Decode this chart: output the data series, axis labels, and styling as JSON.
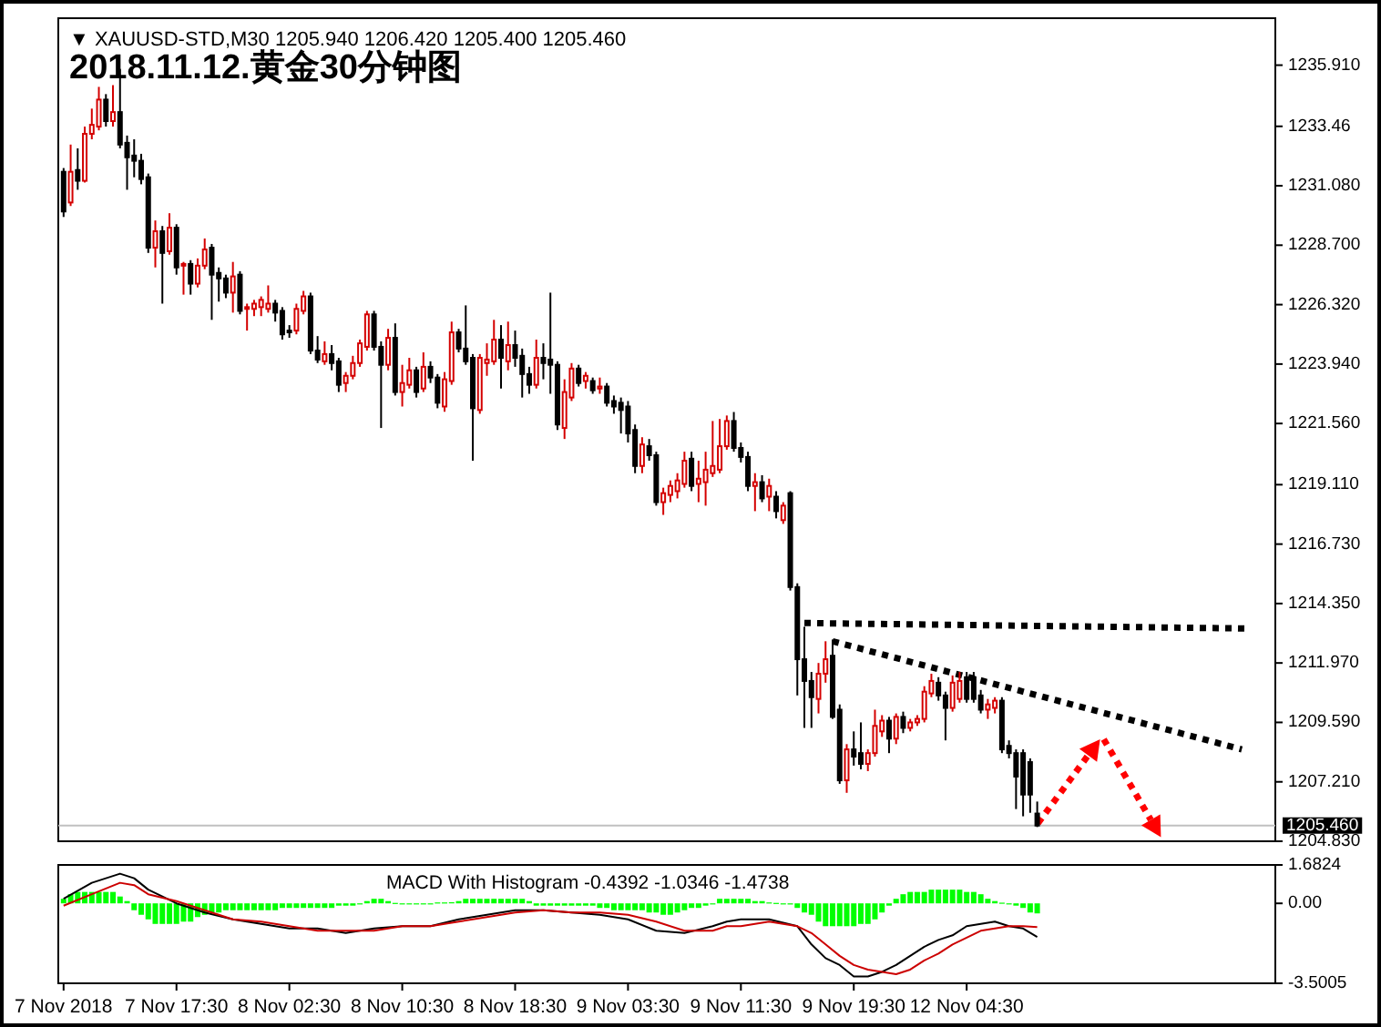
{
  "chart_data": [
    {
      "type": "candlestick",
      "title": "2018.11.12.黄金30分钟图",
      "subtitle": "▼ XAUUSD-STD,M30  1205.940 1206.420 1205.400 1205.460",
      "categories": [
        null,
        null,
        null,
        null,
        null,
        null,
        null,
        null,
        null,
        null,
        null,
        null,
        null,
        null,
        null,
        null,
        null,
        null,
        null,
        null,
        null,
        null,
        null,
        null,
        null,
        null,
        null,
        null,
        null,
        null,
        null,
        null,
        null,
        null,
        null,
        null,
        null,
        null,
        null,
        null,
        null,
        null,
        null,
        null,
        null,
        null,
        null,
        null,
        null,
        null,
        null,
        null,
        null,
        null,
        null,
        null,
        null,
        null,
        null,
        null,
        null,
        null,
        null,
        null,
        null,
        null,
        null,
        null,
        null,
        null,
        null,
        null,
        null,
        null,
        null,
        null,
        null,
        null,
        null,
        null,
        null,
        null,
        null,
        null,
        null,
        null,
        null,
        null,
        null,
        null,
        null,
        null,
        null,
        null,
        null,
        null,
        null,
        null,
        null,
        null,
        null,
        null,
        null,
        null,
        null,
        null,
        null,
        null,
        null,
        null,
        null,
        null,
        null,
        null,
        null,
        null,
        null,
        null,
        null,
        null,
        null,
        null,
        null,
        null,
        null,
        null,
        null,
        null,
        null,
        null,
        null,
        null,
        null,
        null,
        null,
        null,
        null,
        null,
        null,
        null,
        null,
        null,
        null,
        null,
        null,
        null,
        null,
        null,
        null,
        null,
        null,
        null,
        null,
        null,
        null,
        null,
        null,
        null,
        null,
        null,
        null,
        null,
        null,
        null,
        null,
        null,
        null,
        null,
        null,
        null,
        null,
        null
      ],
      "colors": [
        "#000000",
        "#d40000",
        "#000000",
        "#d40000",
        "#d40000",
        "#d40000",
        "#000000",
        "#d40000",
        "#000000",
        "#000000",
        "#000000",
        "#000000",
        "#000000",
        "#d40000",
        "#000000",
        "#d40000",
        "#000000",
        "#d40000",
        "#000000",
        "#d40000",
        "#d40000",
        "#000000",
        "#000000",
        "#000000",
        "#d40000",
        "#000000",
        "#d40000",
        "#d40000",
        "#d40000",
        "#d40000",
        "#000000",
        "#000000",
        "#000000",
        "#d40000",
        "#d40000",
        "#000000",
        "#000000",
        "#d40000",
        "#000000",
        "#000000",
        "#d40000",
        "#d40000",
        "#d40000",
        "#d40000",
        "#000000",
        "#000000",
        "#d40000",
        "#000000",
        "#d40000",
        "#d40000",
        "#000000",
        "#d40000",
        "#000000",
        "#000000",
        "#d40000",
        "#d40000",
        "#000000",
        "#000000",
        "#000000",
        "#d40000",
        "#d40000",
        "#d40000",
        "#000000",
        "#d40000",
        "#000000",
        "#000000",
        "#000000",
        "#d40000",
        "#000000",
        "#000000",
        "#000000",
        "#d40000",
        "#d40000",
        "#000000",
        "#d40000",
        "#000000",
        "#d40000",
        "#000000",
        "#000000",
        "#000000",
        "#000000",
        "#000000",
        "#d40000",
        "#000000",
        "#000000",
        "#d40000",
        "#d40000",
        "#d40000",
        "#d40000",
        "#000000",
        "#d40000",
        "#d40000",
        "#d40000",
        "#d40000",
        "#d40000",
        "#000000",
        "#000000",
        "#000000",
        "#d40000",
        "#000000",
        "#d40000",
        "#000000",
        "#d40000",
        "#000000",
        "#000000",
        "#000000",
        "#000000",
        "#d40000",
        "#d40000",
        "#000000",
        "#000000",
        "#d40000",
        "#000000",
        "#000000",
        "#d40000",
        "#d40000",
        "#d40000",
        "#000000",
        "#d40000",
        "#000000",
        "#d40000",
        "#d40000",
        "#d40000",
        "#d40000",
        "#000000",
        "#000000",
        "#d40000",
        "#d40000",
        "#000000",
        "#000000",
        "#000000",
        "#d40000",
        "#d40000",
        "#000000",
        "#000000",
        "#000000",
        "#000000",
        "#000000",
        "#000000",
        null,
        null,
        null,
        null,
        null,
        null,
        null,
        null,
        null,
        null,
        null,
        null,
        null,
        null,
        null,
        null,
        null,
        null,
        null,
        null,
        null,
        null,
        null,
        null,
        null,
        null,
        null,
        null,
        null,
        null,
        null,
        null,
        null
      ],
      "ohlc": [
        [
          1231.64,
          1231.79,
          1229.83,
          1230.05
        ],
        [
          1230.41,
          1232.73,
          1230.27,
          1231.64
        ],
        [
          1231.71,
          1232.58,
          1230.92,
          1231.28
        ],
        [
          1231.28,
          1233.45,
          1231.21,
          1233.16
        ],
        [
          1233.16,
          1234.17,
          1232.94,
          1233.52
        ],
        [
          1233.45,
          1235.04,
          1233.3,
          1234.53
        ],
        [
          1234.53,
          1234.75,
          1233.45,
          1233.67
        ],
        [
          1233.67,
          1235.11,
          1233.45,
          1234.03
        ],
        [
          1234.03,
          1235.76,
          1232.58,
          1232.73
        ],
        [
          1232.8,
          1233.09,
          1230.92,
          1232.22
        ],
        [
          1232.29,
          1232.94,
          1231.42,
          1232.08
        ],
        [
          1232.08,
          1232.36,
          1231.14,
          1231.35
        ],
        [
          1231.42,
          1231.57,
          1228.39,
          1228.6
        ],
        [
          1228.6,
          1229.69,
          1227.81,
          1229.26
        ],
        [
          1229.26,
          1229.47,
          1226.36,
          1228.39
        ],
        [
          1228.46,
          1229.98,
          1228.32,
          1229.4
        ],
        [
          1229.4,
          1229.54,
          1227.52,
          1227.81
        ],
        [
          1227.88,
          1228.03,
          1226.72,
          1227.95
        ],
        [
          1227.95,
          1228.1,
          1226.72,
          1227.16
        ],
        [
          1227.16,
          1228.17,
          1227.01,
          1227.88
        ],
        [
          1227.88,
          1228.97,
          1227.74,
          1228.53
        ],
        [
          1228.6,
          1228.75,
          1225.71,
          1227.52
        ],
        [
          1227.59,
          1227.81,
          1226.44,
          1227.37
        ],
        [
          1227.37,
          1227.52,
          1226.58,
          1226.8
        ],
        [
          1226.8,
          1228.03,
          1226.0,
          1227.45
        ],
        [
          1227.52,
          1227.66,
          1225.93,
          1226.07
        ],
        [
          1226.15,
          1226.36,
          1225.28,
          1226.22
        ],
        [
          1226.15,
          1226.51,
          1225.86,
          1226.36
        ],
        [
          1226.22,
          1226.65,
          1225.86,
          1226.51
        ],
        [
          1226.15,
          1227.09,
          1226.0,
          1226.36
        ],
        [
          1226.36,
          1226.51,
          1225.64,
          1226.0
        ],
        [
          1226.07,
          1226.22,
          1224.92,
          1225.13
        ],
        [
          1225.28,
          1225.5,
          1224.99,
          1225.21
        ],
        [
          1225.28,
          1226.36,
          1225.13,
          1226.15
        ],
        [
          1226.07,
          1226.87,
          1225.93,
          1226.65
        ],
        [
          1226.65,
          1226.8,
          1224.34,
          1224.48
        ],
        [
          1224.48,
          1225.06,
          1223.98,
          1224.12
        ],
        [
          1224.05,
          1224.85,
          1223.91,
          1224.34
        ],
        [
          1224.34,
          1224.7,
          1223.69,
          1223.98
        ],
        [
          1224.05,
          1224.19,
          1222.82,
          1223.11
        ],
        [
          1223.18,
          1223.62,
          1222.82,
          1223.47
        ],
        [
          1223.47,
          1224.27,
          1223.33,
          1223.98
        ],
        [
          1223.98,
          1224.92,
          1223.83,
          1224.77
        ],
        [
          1224.63,
          1226.07,
          1224.48,
          1225.93
        ],
        [
          1225.93,
          1226.07,
          1224.48,
          1224.63
        ],
        [
          1224.63,
          1224.85,
          1221.38,
          1223.91
        ],
        [
          1223.91,
          1225.35,
          1223.69,
          1224.99
        ],
        [
          1224.99,
          1225.57,
          1222.68,
          1222.82
        ],
        [
          1222.82,
          1223.91,
          1222.24,
          1223.18
        ],
        [
          1223.11,
          1224.19,
          1222.96,
          1223.69
        ],
        [
          1223.69,
          1223.83,
          1222.6,
          1222.82
        ],
        [
          1222.96,
          1224.41,
          1222.82,
          1223.83
        ],
        [
          1223.83,
          1224.05,
          1223.18,
          1223.4
        ],
        [
          1223.4,
          1223.54,
          1222.17,
          1222.39
        ],
        [
          1222.24,
          1223.62,
          1222.03,
          1223.33
        ],
        [
          1223.26,
          1225.64,
          1223.11,
          1225.21
        ],
        [
          1225.21,
          1225.35,
          1224.41,
          1224.56
        ],
        [
          1224.56,
          1226.29,
          1223.91,
          1224.05
        ],
        [
          1224.19,
          1224.34,
          1220.07,
          1222.17
        ],
        [
          1222.1,
          1224.34,
          1221.95,
          1224.19
        ],
        [
          1223.98,
          1224.77,
          1223.47,
          1224.12
        ],
        [
          1224.05,
          1225.71,
          1223.91,
          1224.92
        ],
        [
          1224.92,
          1225.5,
          1222.96,
          1224.19
        ],
        [
          1224.05,
          1225.64,
          1223.69,
          1224.7
        ],
        [
          1224.7,
          1225.28,
          1223.83,
          1224.19
        ],
        [
          1224.27,
          1224.56,
          1222.6,
          1223.54
        ],
        [
          1223.54,
          1223.83,
          1222.75,
          1223.11
        ],
        [
          1223.11,
          1224.92,
          1222.96,
          1224.19
        ],
        [
          1224.19,
          1224.77,
          1223.33,
          1223.98
        ],
        [
          1224.12,
          1226.8,
          1222.75,
          1223.91
        ],
        [
          1223.91,
          1224.05,
          1221.3,
          1221.52
        ],
        [
          1221.38,
          1223.33,
          1220.94,
          1222.82
        ],
        [
          1222.6,
          1223.98,
          1222.46,
          1223.76
        ],
        [
          1223.76,
          1223.91,
          1223.04,
          1223.18
        ],
        [
          1223.26,
          1223.62,
          1222.96,
          1223.47
        ],
        [
          1223.26,
          1223.4,
          1222.75,
          1222.89
        ],
        [
          1222.96,
          1223.4,
          1222.75,
          1223.04
        ],
        [
          1223.04,
          1223.18,
          1222.24,
          1222.39
        ],
        [
          1222.46,
          1222.68,
          1221.95,
          1222.24
        ],
        [
          1222.39,
          1222.6,
          1221.16,
          1222.1
        ],
        [
          1222.24,
          1222.46,
          1220.8,
          1221.16
        ],
        [
          1221.3,
          1221.52,
          1219.57,
          1219.86
        ],
        [
          1219.86,
          1221.01,
          1219.57,
          1220.72
        ],
        [
          1220.65,
          1220.94,
          1220.07,
          1220.29
        ],
        [
          1220.29,
          1220.43,
          1218.27,
          1218.41
        ],
        [
          1218.41,
          1218.99,
          1217.9,
          1218.77
        ],
        [
          1218.7,
          1219.28,
          1218.41,
          1219.06
        ],
        [
          1218.85,
          1219.57,
          1218.56,
          1219.28
        ],
        [
          1219.14,
          1220.43,
          1218.99,
          1220.07
        ],
        [
          1220.15,
          1220.43,
          1218.85,
          1219.06
        ],
        [
          1219.14,
          1220.07,
          1218.41,
          1219.35
        ],
        [
          1219.21,
          1220.43,
          1218.27,
          1219.71
        ],
        [
          1219.57,
          1221.66,
          1219.42,
          1219.86
        ],
        [
          1219.71,
          1221.74,
          1219.57,
          1220.65
        ],
        [
          1220.65,
          1221.88,
          1220.51,
          1221.66
        ],
        [
          1221.66,
          1222.02,
          1220.43,
          1220.58
        ],
        [
          1220.58,
          1220.8,
          1220.0,
          1220.22
        ],
        [
          1220.22,
          1220.43,
          1218.85,
          1219.06
        ],
        [
          1219.06,
          1219.57,
          1218.05,
          1219.21
        ],
        [
          1219.21,
          1219.49,
          1218.41,
          1218.56
        ],
        [
          1218.63,
          1219.35,
          1218.05,
          1219.06
        ],
        [
          1218.63,
          1218.85,
          1217.76,
          1218.05
        ],
        [
          1217.69,
          1218.41,
          1217.54,
          1218.27
        ],
        [
          1218.77,
          1218.85,
          1214.87,
          1215.01
        ],
        [
          1215.01,
          1215.16,
          1210.67,
          1212.12
        ],
        [
          1212.12,
          1213.42,
          1209.37,
          1211.25
        ],
        [
          1211.25,
          1211.61,
          1209.37,
          1210.6
        ],
        [
          1210.53,
          1211.97,
          1209.95,
          1211.54
        ],
        [
          1211.54,
          1212.84,
          1211.18,
          1212.12
        ],
        [
          1212.26,
          1212.91,
          1209.73,
          1209.81
        ],
        [
          1210.1,
          1210.31,
          1207.13,
          1207.27
        ],
        [
          1207.27,
          1208.72,
          1206.77,
          1208.51
        ],
        [
          1208.51,
          1209.23,
          1207.86,
          1208.22
        ],
        [
          1208.36,
          1209.59,
          1207.71,
          1207.93
        ],
        [
          1207.93,
          1208.51,
          1207.64,
          1208.36
        ],
        [
          1208.36,
          1210.1,
          1208.22,
          1209.45
        ],
        [
          1209.23,
          1209.88,
          1209.01,
          1209.66
        ],
        [
          1209.66,
          1209.81,
          1208.36,
          1208.94
        ],
        [
          1208.94,
          1209.95,
          1208.72,
          1209.81
        ],
        [
          1209.81,
          1210.02,
          1209.16,
          1209.37
        ],
        [
          1209.37,
          1209.73,
          1209.23,
          1209.59
        ],
        [
          1209.59,
          1209.88,
          1209.45,
          1209.73
        ],
        [
          1209.73,
          1211.04,
          1209.59,
          1210.82
        ],
        [
          1210.75,
          1211.54,
          1210.6,
          1211.25
        ],
        [
          1211.18,
          1211.4,
          1210.46,
          1210.67
        ],
        [
          1210.67,
          1210.82,
          1208.87,
          1210.17
        ],
        [
          1210.17,
          1211.47,
          1210.02,
          1211.18
        ],
        [
          1210.53,
          1211.61,
          1210.38,
          1211.25
        ],
        [
          1211.4,
          1211.61,
          1210.38,
          1210.53
        ],
        [
          1211.4,
          1211.61,
          1210.38,
          1210.53
        ],
        [
          1210.67,
          1210.89,
          1209.95,
          1210.1
        ],
        [
          1210.1,
          1210.53,
          1209.73,
          1210.31
        ],
        [
          1210.17,
          1210.6,
          1209.95,
          1210.46
        ],
        [
          1210.46,
          1210.6,
          1208.36,
          1208.51
        ],
        [
          1208.65,
          1208.87,
          1208.15,
          1208.36
        ],
        [
          1208.36,
          1208.51,
          1206.12,
          1207.42
        ],
        [
          1208.36,
          1208.51,
          1205.83,
          1206.7
        ],
        [
          1208.0,
          1208.15,
          1205.97,
          1206.7
        ],
        [
          1205.94,
          1206.42,
          1205.4,
          1205.46
        ],
        null,
        null,
        null,
        null,
        null,
        null,
        null,
        null,
        null,
        null,
        null,
        null,
        null,
        null,
        null,
        null,
        null,
        null,
        null,
        null,
        null,
        null,
        null,
        null,
        null,
        null,
        null,
        null,
        null,
        null,
        null,
        null,
        null
      ],
      "series": [
        {
          "type": "line",
          "color": "#000000",
          "line_style": "dotted",
          "values": [
            null,
            null,
            null,
            null,
            null,
            null,
            null,
            null,
            null,
            null,
            null,
            null,
            null,
            null,
            null,
            null,
            null,
            null,
            null,
            null,
            null,
            null,
            null,
            null,
            null,
            null,
            null,
            null,
            null,
            null,
            null,
            null,
            null,
            null,
            null,
            null,
            null,
            null,
            null,
            null,
            null,
            null,
            null,
            null,
            null,
            null,
            null,
            null,
            null,
            null,
            null,
            null,
            null,
            null,
            null,
            null,
            null,
            null,
            null,
            null,
            null,
            null,
            null,
            null,
            null,
            null,
            null,
            null,
            null,
            null,
            null,
            null,
            null,
            null,
            null,
            null,
            null,
            null,
            null,
            null,
            null,
            null,
            null,
            null,
            null,
            null,
            null,
            null,
            null,
            null,
            null,
            null,
            null,
            null,
            null,
            null,
            null,
            null,
            null,
            null,
            null,
            null,
            null,
            null,
            null,
            1213.57,
            null,
            null,
            null,
            null,
            null,
            null,
            null,
            null,
            null,
            null,
            null,
            null,
            null,
            null,
            null,
            null,
            null,
            null,
            null,
            null,
            null,
            null,
            null,
            null,
            null,
            null,
            null,
            null,
            null,
            null,
            null,
            null,
            null,
            null,
            null,
            null,
            null,
            null,
            null,
            null,
            null,
            null,
            null,
            null,
            null,
            null,
            null,
            null,
            null,
            null,
            null,
            null,
            null,
            null,
            null,
            null,
            null,
            null,
            null,
            null,
            null,
            null,
            1213.35,
            null,
            null,
            null
          ]
        },
        {
          "type": "line",
          "color": "#000000",
          "line_style": "dotted",
          "values": [
            null,
            null,
            null,
            null,
            null,
            null,
            null,
            null,
            null,
            null,
            null,
            null,
            null,
            null,
            null,
            null,
            null,
            null,
            null,
            null,
            null,
            null,
            null,
            null,
            null,
            null,
            null,
            null,
            null,
            null,
            null,
            null,
            null,
            null,
            null,
            null,
            null,
            null,
            null,
            null,
            null,
            null,
            null,
            null,
            null,
            null,
            null,
            null,
            null,
            null,
            null,
            null,
            null,
            null,
            null,
            null,
            null,
            null,
            null,
            null,
            null,
            null,
            null,
            null,
            null,
            null,
            null,
            null,
            null,
            null,
            null,
            null,
            null,
            null,
            null,
            null,
            null,
            null,
            null,
            null,
            null,
            null,
            null,
            null,
            null,
            null,
            null,
            null,
            null,
            null,
            null,
            null,
            null,
            null,
            null,
            null,
            null,
            null,
            null,
            null,
            null,
            null,
            null,
            null,
            null,
            null,
            null,
            null,
            null,
            1212.84,
            null,
            null,
            null,
            null,
            null,
            null,
            null,
            null,
            null,
            null,
            null,
            null,
            null,
            null,
            null,
            null,
            null,
            null,
            null,
            null,
            null,
            null,
            null,
            null,
            null,
            null,
            null,
            null,
            null,
            null,
            null,
            null,
            null,
            null,
            null,
            null,
            null,
            null,
            null,
            null,
            null,
            null,
            null,
            null,
            null,
            null,
            null,
            null,
            null,
            null,
            null,
            null,
            null,
            null,
            null,
            null,
            null,
            1208.51,
            null,
            null,
            null,
            null
          ]
        }
      ],
      "ylim": [
        1204.83,
        1237.79
      ],
      "yticks": [
        {
          "value": 1235.91,
          "label": "1235.910"
        },
        1233.46,
        {
          "value": 1231.08,
          "label": "1231.080"
        },
        {
          "value": 1228.7,
          "label": "1228.700"
        },
        {
          "value": 1226.32,
          "label": "1226.320"
        },
        {
          "value": 1223.94,
          "label": "1223.940"
        },
        {
          "value": 1221.56,
          "label": "1221.560"
        },
        {
          "value": 1219.11,
          "label": "1219.110"
        },
        {
          "value": 1216.73,
          "label": "1216.730"
        },
        {
          "value": 1214.35,
          "label": "1214.350"
        },
        {
          "value": 1211.97,
          "label": "1211.970"
        },
        {
          "value": 1209.59,
          "label": "1209.590"
        },
        {
          "value": 1207.21,
          "label": "1207.210"
        },
        {
          "value": 1204.83,
          "label": "1204.830"
        }
      ],
      "ref_lines": [
        {
          "axis": "y",
          "value": 1205.46,
          "label": "1205.460",
          "color": "#c0c0c0"
        }
      ],
      "tick_labels": "y"
    },
    {
      "type": "bar",
      "title": "MACD With Histogram -0.4392 -1.0346 -1.4738",
      "categories": [
        "7 Nov 2018",
        null,
        null,
        null,
        null,
        null,
        null,
        null,
        null,
        null,
        null,
        null,
        null,
        null,
        null,
        null,
        "7 Nov 17:30",
        null,
        null,
        null,
        null,
        null,
        null,
        null,
        null,
        null,
        null,
        null,
        null,
        null,
        null,
        null,
        "8 Nov 02:30",
        null,
        null,
        null,
        null,
        null,
        null,
        null,
        null,
        null,
        null,
        null,
        null,
        null,
        null,
        null,
        "8 Nov 10:30",
        null,
        null,
        null,
        null,
        null,
        null,
        null,
        null,
        null,
        null,
        null,
        null,
        null,
        null,
        null,
        "8 Nov 18:30",
        null,
        null,
        null,
        null,
        null,
        null,
        null,
        null,
        null,
        null,
        null,
        null,
        null,
        null,
        null,
        "9 Nov 03:30",
        null,
        null,
        null,
        null,
        null,
        null,
        null,
        null,
        null,
        null,
        null,
        null,
        null,
        null,
        null,
        "9 Nov 11:30",
        null,
        null,
        null,
        null,
        null,
        null,
        null,
        null,
        null,
        null,
        null,
        null,
        null,
        null,
        null,
        "9 Nov 19:30",
        null,
        null,
        null,
        null,
        null,
        null,
        null,
        null,
        null,
        null,
        null,
        null,
        null,
        null,
        null,
        "12 Nov 04:30",
        null,
        null,
        null,
        null,
        null,
        null,
        null,
        null,
        null,
        null,
        null,
        null,
        null,
        null,
        null,
        null,
        null,
        null,
        null,
        null,
        null,
        null,
        null,
        null,
        null,
        null,
        null,
        null,
        null,
        null,
        null,
        null,
        null,
        null,
        null,
        null,
        null,
        null,
        null,
        null,
        null,
        null,
        null
      ],
      "series": [
        {
          "type": "bar",
          "color": "#00ff00",
          "values": [
            0.2,
            0.4,
            0.5,
            0.5,
            0.5,
            0.5,
            0.5,
            0.5,
            0.3,
            0.1,
            -0.3,
            -0.5,
            -0.7,
            -0.9,
            -0.9,
            -0.9,
            -0.9,
            -0.8,
            -0.8,
            -0.6,
            -0.5,
            -0.4,
            -0.4,
            -0.3,
            -0.3,
            -0.3,
            -0.3,
            -0.3,
            -0.3,
            -0.3,
            -0.3,
            -0.2,
            -0.2,
            -0.2,
            -0.2,
            -0.2,
            -0.2,
            -0.2,
            -0.2,
            -0.1,
            -0.1,
            -0.1,
            -0.02,
            0.1,
            0.2,
            0.2,
            0.1,
            0.02,
            -0.02,
            -0.02,
            -0.02,
            -0.02,
            -0.02,
            0.04,
            0.04,
            0.05,
            0.1,
            0.2,
            0.2,
            0.2,
            0.2,
            0.2,
            0.2,
            0.2,
            0.2,
            0.2,
            0.1,
            -0.1,
            -0.1,
            -0.1,
            -0.1,
            -0.1,
            -0.1,
            -0.1,
            -0.1,
            -0.1,
            -0.2,
            -0.2,
            -0.3,
            -0.3,
            -0.3,
            -0.3,
            -0.3,
            -0.4,
            -0.4,
            -0.5,
            -0.5,
            -0.4,
            -0.3,
            -0.2,
            -0.2,
            -0.1,
            -0.02,
            0.2,
            0.2,
            0.2,
            0.2,
            0.2,
            0.1,
            0.1,
            0.04,
            0.02,
            -0.02,
            -0.05,
            -0.2,
            -0.4,
            -0.5,
            -0.8,
            -1,
            -1,
            -1,
            -1,
            -1,
            -0.9,
            -0.9,
            -0.7,
            -0.4,
            -0.1,
            0.2,
            0.4,
            0.5,
            0.5,
            0.5,
            0.6,
            0.6,
            0.6,
            0.6,
            0.6,
            0.5,
            0.5,
            0.4,
            0.2,
            0.1,
            0.03,
            -0.02,
            -0.1,
            -0.2,
            -0.4,
            -0.4392,
            null,
            null,
            null,
            null,
            null,
            null,
            null,
            null,
            null,
            null,
            null,
            null,
            null,
            null,
            null,
            null,
            null,
            null,
            null,
            null,
            null,
            null,
            null,
            null,
            null,
            null,
            null,
            null,
            null,
            null,
            null,
            null,
            null
          ]
        },
        {
          "type": "line",
          "color": "#000000",
          "values": [
            0.2,
            null,
            null,
            null,
            0.9,
            null,
            null,
            null,
            1.3,
            null,
            1.1,
            null,
            0.6,
            null,
            null,
            null,
            0,
            null,
            null,
            null,
            -0.4,
            null,
            null,
            null,
            -0.7,
            null,
            null,
            null,
            -0.9,
            null,
            null,
            null,
            -1.1,
            null,
            null,
            null,
            -1.1,
            null,
            null,
            null,
            -1.3,
            null,
            null,
            null,
            -1.1,
            null,
            null,
            null,
            -1,
            null,
            null,
            null,
            -1,
            null,
            null,
            null,
            -0.7,
            null,
            null,
            null,
            -0.5,
            null,
            null,
            null,
            -0.3,
            null,
            null,
            null,
            -0.3,
            null,
            null,
            null,
            -0.4,
            null,
            null,
            null,
            -0.5,
            null,
            null,
            null,
            -0.7,
            null,
            null,
            null,
            -1.2,
            null,
            null,
            null,
            -1.3,
            null,
            null,
            null,
            -1,
            null,
            -0.8,
            null,
            -0.7,
            null,
            null,
            null,
            -0.7,
            null,
            null,
            null,
            -1,
            null,
            -1.8,
            null,
            -2.4,
            null,
            -2.7,
            null,
            -3.2,
            null,
            -3.2,
            null,
            -3,
            null,
            -2.7,
            null,
            -2.3,
            null,
            -1.9,
            null,
            -1.6,
            null,
            -1.4,
            null,
            -1,
            null,
            -0.9,
            null,
            -0.8,
            null,
            -1,
            null,
            -1.1,
            null,
            -1.4738,
            null,
            null,
            null,
            null,
            null,
            null,
            null,
            null,
            null,
            null,
            null,
            null,
            null,
            null,
            null,
            null,
            null,
            null,
            null,
            null,
            null,
            null,
            null,
            null,
            null,
            null,
            null,
            null,
            null,
            null,
            null,
            null,
            null
          ]
        },
        {
          "type": "line",
          "color": "#cc0000",
          "values": [
            -0.1,
            null,
            null,
            null,
            0.4,
            null,
            null,
            null,
            0.9,
            null,
            0.8,
            null,
            0.4,
            null,
            null,
            null,
            0.1,
            null,
            null,
            null,
            -0.3,
            null,
            null,
            null,
            -0.7,
            null,
            null,
            null,
            -0.8,
            null,
            null,
            null,
            -1,
            null,
            null,
            null,
            -1.2,
            null,
            null,
            null,
            -1.2,
            null,
            null,
            null,
            -1.2,
            null,
            null,
            null,
            -1,
            null,
            null,
            null,
            -1,
            null,
            null,
            null,
            -0.8,
            null,
            null,
            null,
            -0.6,
            null,
            null,
            null,
            -0.4,
            null,
            null,
            null,
            -0.3,
            null,
            null,
            null,
            -0.4,
            null,
            null,
            null,
            -0.4,
            null,
            null,
            null,
            -0.5,
            null,
            null,
            null,
            -0.8,
            null,
            null,
            null,
            -1.2,
            null,
            null,
            null,
            -1.2,
            null,
            -1,
            null,
            -1,
            null,
            null,
            null,
            -0.8,
            null,
            null,
            null,
            -1,
            null,
            -1.3,
            null,
            -1.8,
            null,
            -2.3,
            null,
            -2.7,
            null,
            -2.9,
            null,
            -3,
            null,
            -3.1,
            null,
            -2.9,
            null,
            -2.5,
            null,
            -2.2,
            null,
            -1.8,
            null,
            -1.5,
            null,
            -1.2,
            null,
            -1.1,
            null,
            -1,
            null,
            -1,
            null,
            -1.0346,
            null,
            null,
            null,
            null,
            null,
            null,
            null,
            null,
            null,
            null,
            null,
            null,
            null,
            null,
            null,
            null,
            null,
            null,
            null,
            null,
            null,
            null,
            null,
            null,
            null,
            null,
            null,
            null,
            null,
            null,
            null,
            null,
            null
          ]
        }
      ],
      "ylim": [
        -3.5005,
        1.6824
      ],
      "yticks": [
        1.6824,
        {
          "value": 0,
          "label": "0.00"
        },
        -3.5005
      ]
    }
  ]
}
